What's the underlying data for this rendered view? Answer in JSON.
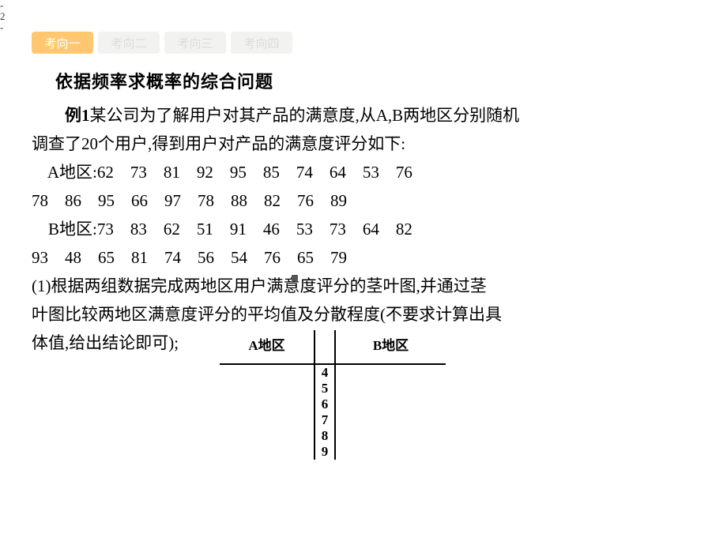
{
  "page_edge": [
    "-",
    "2",
    "-"
  ],
  "tabs": [
    {
      "label": "考向一",
      "active": true
    },
    {
      "label": "考向二",
      "active": false
    },
    {
      "label": "考向三",
      "active": false
    },
    {
      "label": "考向四",
      "active": false
    }
  ],
  "section_title": "依据频率求概率的综合问题",
  "example_label": "例1",
  "intro_line1": "某公司为了解用户对其产品的满意度,从A,B两地区分别随机",
  "intro_line2": "调查了20个用户,得到用户对产品的满意度评分如下:",
  "dataA_row1": "    A地区:62　73　81　92　95　85　74　64　53　76",
  "dataA_row2": "78　86　95　66　97　78　88　82　76　89",
  "dataB_row1": "    B地区:73　83　62　51　91　46　53　73　64　82",
  "dataB_row2": "93　48　65　81　74　56　54　76　65　79",
  "question_part1": "    (1)根据两组数据完成两地区用户满意度评分的茎叶图,并通过茎",
  "question_part2": "叶图比较两地区满意度评分的平均值及分散程度(不要求计算出具",
  "question_part3": "体值,给出结论即可);",
  "stemleaf": {
    "header_left": "A地区",
    "header_right": "B地区",
    "stems": [
      "4",
      "5",
      "6",
      "7",
      "8",
      "9"
    ]
  },
  "colors": {
    "tab_active_bg": "#ffc870",
    "tab_active_fg": "#ffffff",
    "tab_inactive_bg": "#f2f2f0",
    "tab_inactive_fg": "#dcdcd8",
    "text": "#000000",
    "bg": "#ffffff"
  }
}
